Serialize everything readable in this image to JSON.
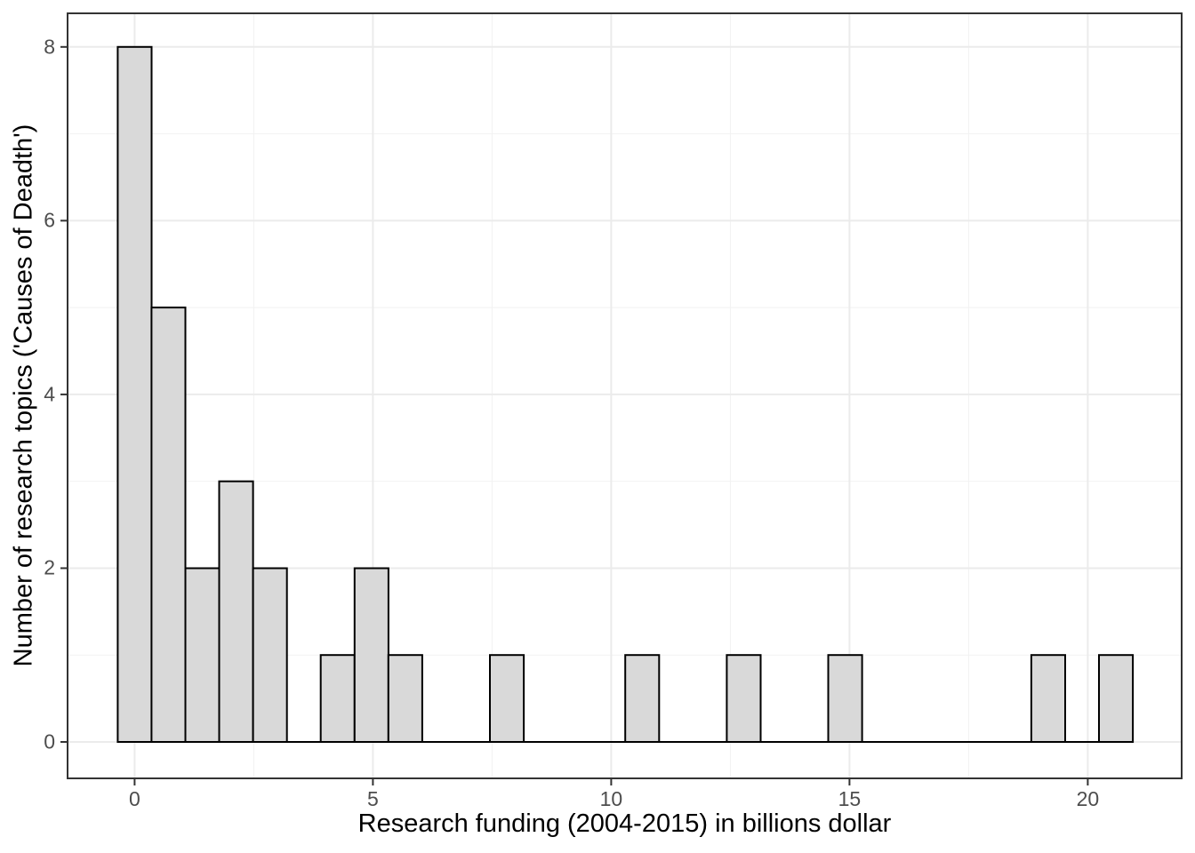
{
  "chart_data": {
    "type": "bar",
    "subtype": "histogram",
    "title": "",
    "xlabel": "Research funding (2004-2015) in billions dollar",
    "ylabel": "Number of research topics ('Causes of Deadth')",
    "bin_width": 0.71,
    "bins": {
      "centers": [
        0,
        0.71,
        1.42,
        2.13,
        2.84,
        3.55,
        4.26,
        4.97,
        5.68,
        6.39,
        7.1,
        7.81,
        8.52,
        9.23,
        9.94,
        10.65,
        11.36,
        12.07,
        12.78,
        13.49,
        14.2,
        14.91,
        15.62,
        16.33,
        17.04,
        17.75,
        18.46,
        19.17,
        19.88,
        20.59
      ],
      "counts": [
        8,
        5,
        2,
        3,
        2,
        0,
        1,
        2,
        1,
        0,
        0,
        1,
        0,
        0,
        0,
        1,
        0,
        0,
        1,
        0,
        0,
        1,
        0,
        0,
        0,
        0,
        0,
        1,
        0,
        1
      ]
    },
    "total_topics": 30,
    "x_ticks": [
      0,
      5,
      10,
      15,
      20
    ],
    "x_minor_ticks": [
      2.5,
      7.5,
      12.5,
      17.5
    ],
    "y_ticks": [
      0,
      2,
      4,
      6,
      8
    ],
    "y_minor_ticks": [
      1,
      3,
      5,
      7
    ],
    "xlim": [
      -1.4,
      21.9
    ],
    "ylim": [
      -0.42,
      8.42
    ],
    "grid": "major-and-minor",
    "legend": "none",
    "colors": {
      "bar_fill": "#d9d9d9",
      "bar_stroke": "#000000",
      "panel_border": "#333333",
      "grid_major": "#ebebeb",
      "grid_minor": "#f2f2f2",
      "tick_mark": "#333333",
      "tick_text": "#4d4d4d",
      "title_text": "#000000",
      "background": "#ffffff"
    }
  }
}
